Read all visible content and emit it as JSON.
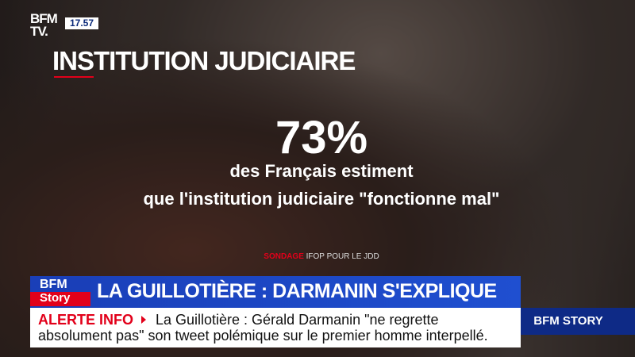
{
  "header": {
    "logo_top": "BFM",
    "logo_bottom": "TV.",
    "clock": "17.57"
  },
  "panel": {
    "title": "INSTITUTION JUDICIAIRE",
    "stat": "73%",
    "lines": [
      "des Français estiment",
      "que l'institution judiciaire \"fonctionne mal\""
    ],
    "source_label": "SONDAGE",
    "source": "IFOP POUR LE JDD"
  },
  "banner": {
    "logo_top": "BFM",
    "logo_bottom": "Story",
    "headline": "LA GUILLOTIÈRE : DARMANIN S'EXPLIQUE"
  },
  "ticker": {
    "alert": "ALERTE INFO",
    "lines": [
      "La Guillotière : Gérald Darmanin \"ne regrette",
      "absolument pas\" son tweet polémique sur le premier homme interpellé."
    ],
    "channel": "BFM STORY"
  }
}
